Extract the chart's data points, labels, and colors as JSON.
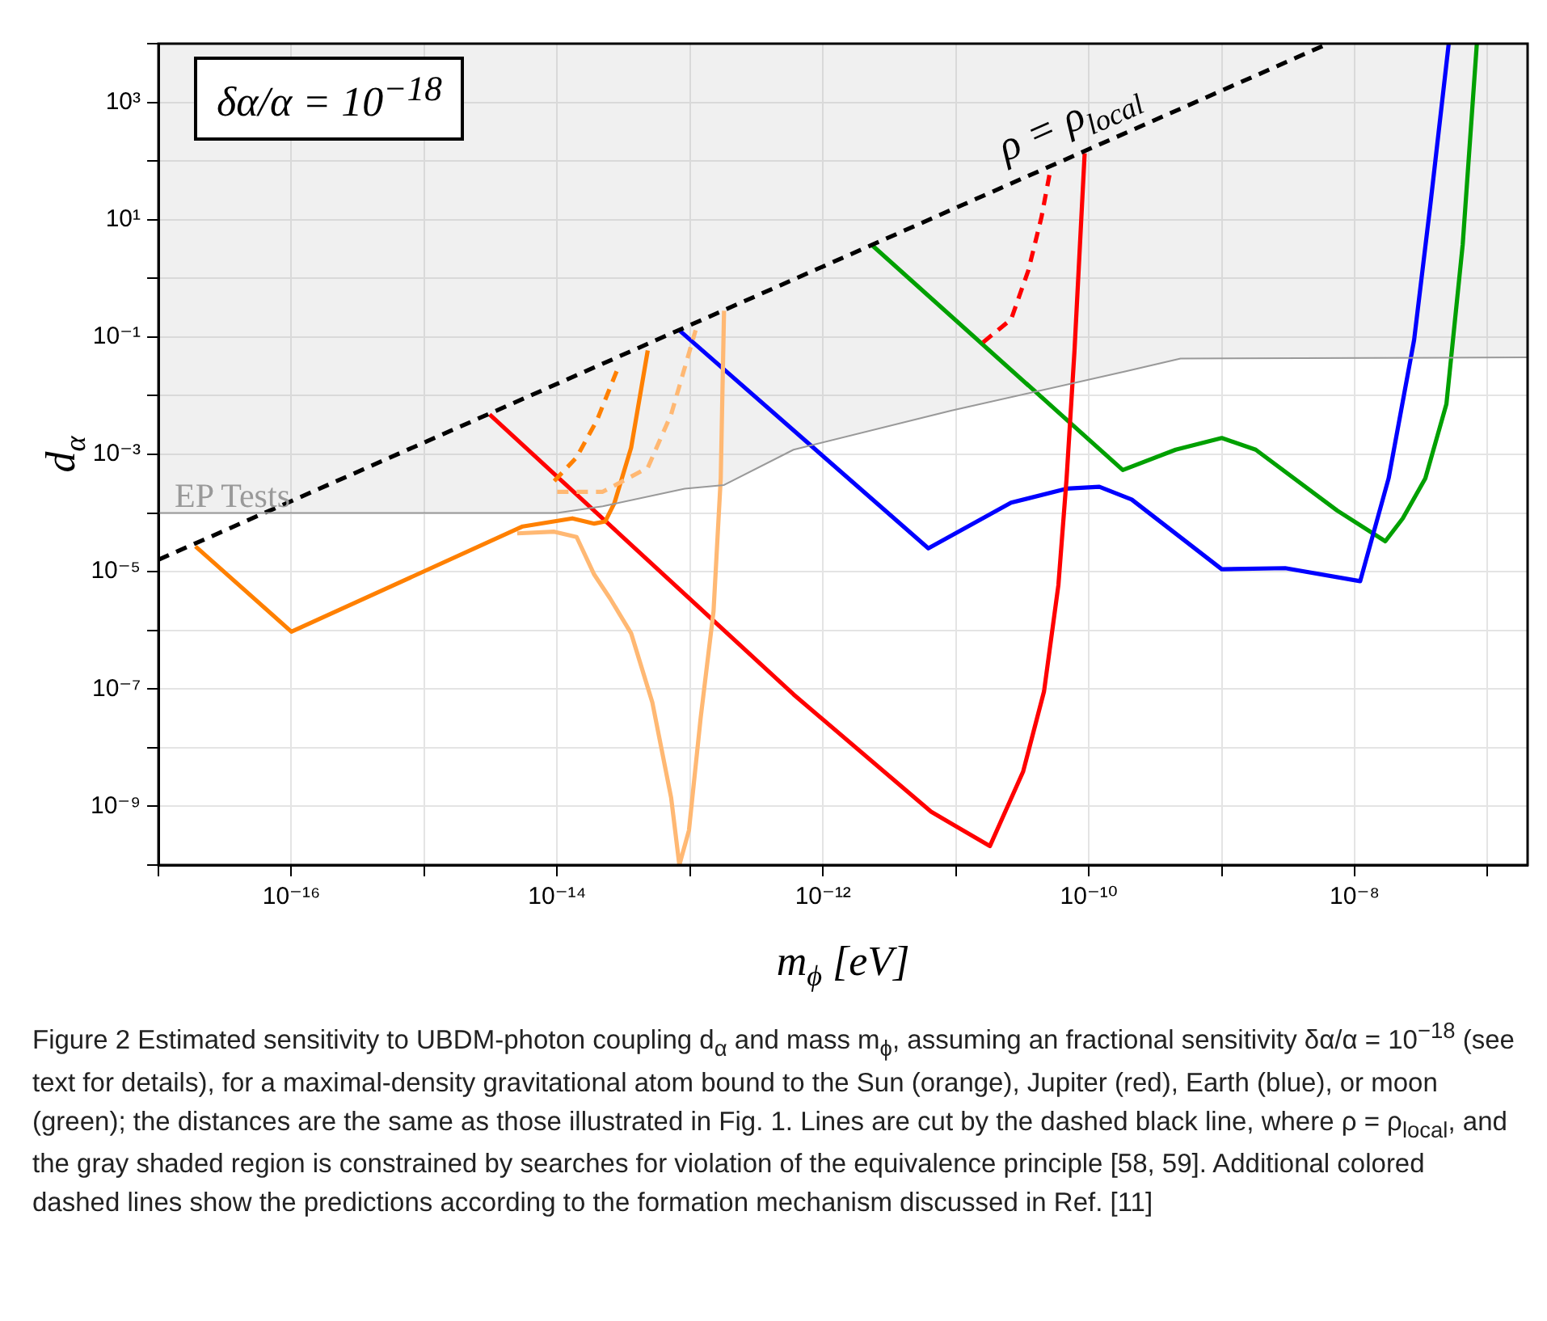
{
  "chart_data": {
    "type": "line",
    "xlabel": "m$_{ϕ}$ [eV]",
    "ylabel": "d$_{α}$",
    "log": "xy",
    "grid": true,
    "marker": "none",
    "line_style": "solid",
    "xlim": [
      1e-17,
      2e-07
    ],
    "ylim": [
      1e-10,
      10000.0
    ],
    "xticks": [
      {
        "value": 1e-17,
        "label": null
      },
      {
        "value": 1e-16,
        "label": "10⁻¹⁶"
      },
      {
        "value": 1e-15,
        "label": null
      },
      {
        "value": 1e-14,
        "label": "10⁻¹⁴"
      },
      {
        "value": 1e-13,
        "label": null
      },
      {
        "value": 1e-12,
        "label": "10⁻¹²"
      },
      {
        "value": 1e-11,
        "label": null
      },
      {
        "value": 1e-10,
        "label": "10⁻¹⁰"
      },
      {
        "value": 1e-09,
        "label": null
      },
      {
        "value": 1e-08,
        "label": "10⁻⁸"
      },
      {
        "value": 1e-07,
        "label": null
      }
    ],
    "yticks": [
      {
        "value": 1e-10,
        "label": null
      },
      {
        "value": 1e-09,
        "label": "10⁻⁹"
      },
      {
        "value": 1e-08,
        "label": null
      },
      {
        "value": 1e-07,
        "label": "10⁻⁷"
      },
      {
        "value": 1e-06,
        "label": null
      },
      {
        "value": 1e-05,
        "label": "10⁻⁵"
      },
      {
        "value": 0.0001,
        "label": null
      },
      {
        "value": 0.001,
        "label": "10⁻³"
      },
      {
        "value": 0.01,
        "label": null
      },
      {
        "value": 0.1,
        "label": "10⁻¹"
      },
      {
        "value": 1,
        "label": null
      },
      {
        "value": 10,
        "label": "10¹"
      },
      {
        "value": 100,
        "label": null
      },
      {
        "value": 1000,
        "label": "10³"
      },
      {
        "value": 10000.0,
        "label": null
      }
    ],
    "series": [
      {
        "name": "EP Tests",
        "color": "#999999",
        "x": [
          1e-17,
          1e-14,
          2.2e-14,
          9.1e-14,
          1.8e-13,
          6e-13,
          9.3e-12,
          1.9e-10,
          4.9e-10,
          2e-07
        ],
        "values": [
          0.0001,
          0.0001,
          0.00013,
          0.00026,
          0.0003,
          0.0012,
          0.0056,
          0.026,
          0.043,
          0.045
        ],
        "lower": [
          0.0001,
          0.0001,
          0.00013,
          0.00026,
          0.0003,
          0.0012,
          0.0056,
          0.026,
          0.043,
          0.045
        ],
        "upper": [
          10000.0,
          10000.0,
          10000.0,
          10000.0,
          10000.0,
          10000.0,
          10000.0,
          10000.0,
          10000.0,
          10000.0
        ]
      },
      {
        "color": "#000000",
        "line_style": "dashed",
        "x": [
          1e-17,
          6.3e-09
        ],
        "values": [
          1.6e-05,
          10000.0
        ]
      },
      {
        "color": "#ffb873",
        "x": [
          5e-15,
          9.5e-15,
          1.4e-14,
          1.9e-14,
          2.5e-14,
          3.6e-14,
          5.2e-14,
          7.2e-14,
          8.3e-14,
          9.8e-14,
          1.2e-13,
          1.5e-13,
          1.7e-13,
          1.8e-13
        ],
        "values": [
          4.5e-05,
          4.8e-05,
          3.9e-05,
          8.9e-06,
          3.5e-06,
          8.9e-07,
          5.9e-08,
          1.4e-09,
          1e-10,
          3.9e-10,
          3.2e-08,
          2.1e-06,
          0.00039,
          0.28
        ]
      },
      {
        "color": "#ffb873",
        "line_style": "dashed",
        "x": [
          1e-14,
          2.2e-14,
          4.8e-14,
          7.2e-14,
          1.1e-13
        ],
        "values": [
          0.00023,
          0.00023,
          0.00059,
          0.0048,
          0.13
        ]
      },
      {
        "color": "#ff8000",
        "line_style": "dashed",
        "x": [
          9.5e-15,
          1.4e-14,
          2e-14,
          2.8e-14
        ],
        "values": [
          0.00035,
          0.00089,
          0.0039,
          0.026
        ]
      },
      {
        "color": "#ff8000",
        "x": [
          1.9e-17,
          1e-16,
          5.5e-15,
          1.3e-14,
          1.9e-14,
          2.3e-14,
          2.7e-14,
          3.6e-14,
          4.8e-14
        ],
        "values": [
          2.7e-05,
          9.5e-07,
          5.9e-05,
          8.1e-05,
          6.6e-05,
          7.2e-05,
          0.00015,
          0.0013,
          0.059
        ]
      },
      {
        "color": "#ff0000",
        "line_style": "dashed",
        "x": [
          1.6e-11,
          2.6e-11,
          3.5e-11,
          4.4e-11,
          5.1e-11
        ],
        "values": [
          0.081,
          0.2,
          1.35,
          11,
          65
        ]
      },
      {
        "color": "#ff0000",
        "x": [
          3.1e-15,
          6e-13,
          6.5e-12,
          1.8e-11,
          3.2e-11,
          4.6e-11,
          5.9e-11,
          6.8e-11,
          7.8e-11,
          9.3e-11
        ],
        "values": [
          0.0048,
          8.1e-08,
          8.1e-10,
          2.1e-10,
          3.9e-09,
          9.1e-08,
          5.9e-06,
          0.00039,
          0.059,
          135
        ]
      },
      {
        "color": "#0000ff",
        "x": [
          8.3e-14,
          6.2e-12,
          2.6e-11,
          6.8e-11,
          1.2e-10,
          2.1e-10,
          1e-09,
          3e-09,
          1.1e-08,
          1.8e-08,
          2.8e-08,
          3.7e-08,
          5.1e-08
        ],
        "values": [
          0.13,
          2.5e-05,
          0.00015,
          0.00026,
          0.00028,
          0.00017,
          1.1e-05,
          1.15e-05,
          6.9e-06,
          0.00039,
          0.089,
          17,
          10000.0
        ]
      },
      {
        "color": "#00a000",
        "x": [
          2.3e-12,
          1.8e-10,
          4.5e-10,
          1e-09,
          1.8e-09,
          7.4e-09,
          1.7e-08,
          2.3e-08,
          3.4e-08,
          4.9e-08,
          6.5e-08,
          8.3e-08
        ],
        "values": [
          3.8,
          0.00054,
          0.0012,
          0.0019,
          0.0012,
          0.00011,
          3.3e-05,
          8.1e-05,
          0.00039,
          0.0072,
          3.8,
          10000.0
        ]
      }
    ],
    "annotations": [
      "δα/α = 10$^{−18}$",
      {
        "text": "ρ = ρ$_{local}$",
        "x": 9e-11,
        "y": 140
      },
      "Figure 2  Estimated sensitivity to UBDM-photon coupling d$_{α}$ and mass m$_{ϕ}$, assuming an fractional sensitivity δα/α = 10$^{−18}$ (see text for details), for a maximal-density gravitational atom bound to the Sun (orange), Jupiter (red), Earth (blue), or moon (green); the distances are the same as those illustrated in Fig. 1. Lines are cut by the dashed black line, where ρ = ρ$_{local}$, and the gray shaded region is constrained by searches for violation of the equivalence principle [58, 59]. Additional colored dashed lines show the predictions according to the formation mechanism discussed in Ref. [11]"
    ]
  }
}
